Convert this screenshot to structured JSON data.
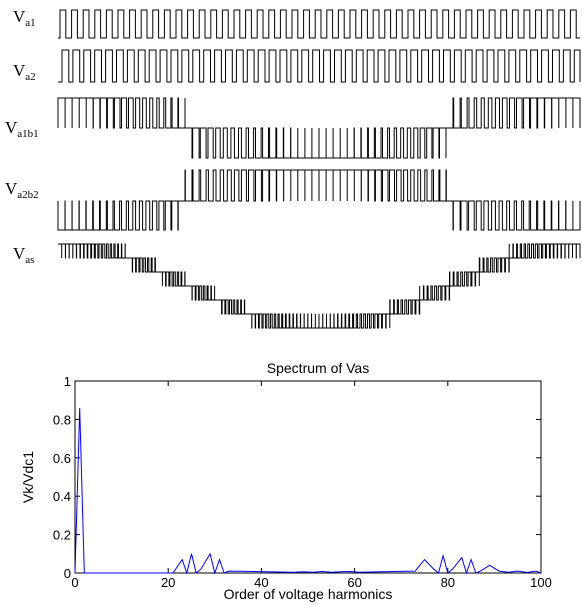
{
  "waveforms": [
    {
      "name": "V",
      "subscript": "a1",
      "kind": "pwm_carrier1"
    },
    {
      "name": "V",
      "subscript": "a2",
      "kind": "pwm_carrier2"
    },
    {
      "name": "V",
      "subscript": "a1b1",
      "kind": "line_voltage_1"
    },
    {
      "name": "V",
      "subscript": "a2b2",
      "kind": "line_voltage_2"
    },
    {
      "name": "V",
      "subscript": "as",
      "kind": "phase_voltage"
    }
  ],
  "chart_data": {
    "type": "line",
    "title": "Spectrum of Vas",
    "xlabel": "Order of voltage harmonics",
    "ylabel": "Vk/Vdc1",
    "xlim": [
      0,
      100
    ],
    "ylim": [
      0,
      1
    ],
    "xticks": [
      0,
      20,
      40,
      60,
      80,
      100
    ],
    "yticks": [
      0,
      0.2,
      0.4,
      0.6,
      0.8,
      1
    ],
    "grid": false,
    "line_color": "#0000ff",
    "series": [
      {
        "x": [
          0,
          1,
          2,
          3,
          21,
          23,
          24,
          25,
          26,
          27,
          29,
          30,
          31,
          32,
          33,
          47,
          49,
          51,
          53,
          55,
          57,
          59,
          61,
          73,
          75,
          77,
          78,
          79,
          80,
          81,
          83,
          84,
          85,
          86,
          87,
          89,
          91,
          93,
          95,
          97,
          99,
          100
        ],
        "y": [
          0,
          0.86,
          0,
          0,
          0,
          0.07,
          0,
          0.1,
          0,
          0.02,
          0.1,
          0,
          0.07,
          0,
          0.01,
          0.004,
          0.006,
          0.004,
          0.008,
          0.004,
          0.006,
          0.008,
          0.004,
          0.01,
          0.07,
          0.02,
          0,
          0.09,
          0,
          0.02,
          0.08,
          0,
          0.07,
          0,
          0.01,
          0.04,
          0.01,
          0.004,
          0.01,
          0.003,
          0.01,
          0
        ]
      }
    ]
  }
}
